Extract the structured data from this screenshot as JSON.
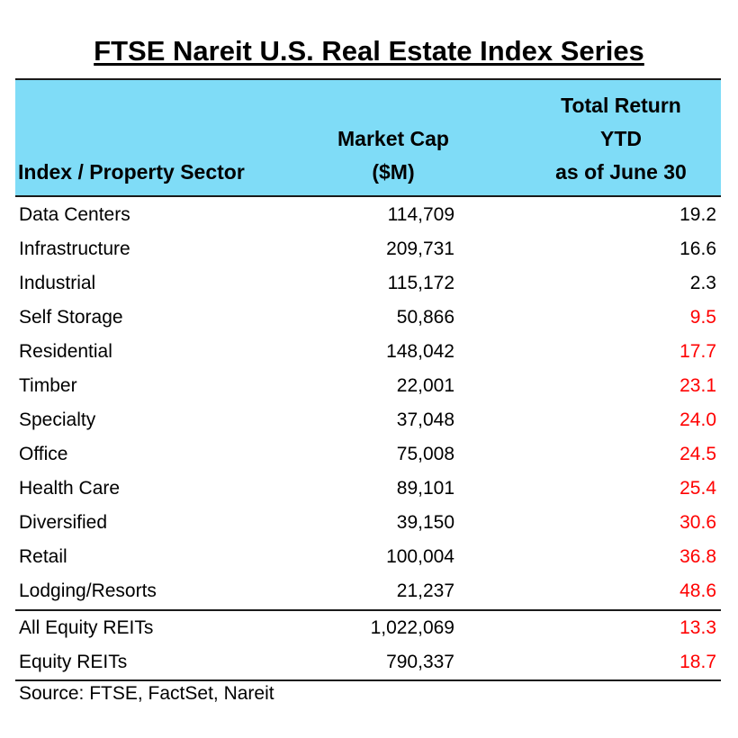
{
  "chart_data": {
    "type": "table",
    "title": "FTSE Nareit U.S. Real Estate Index Series",
    "columns": [
      "Index / Property Sector",
      "Market Cap ($M)",
      "Total Return YTD as of June 30"
    ],
    "header": {
      "sector": "Index / Property Sector",
      "cap_line1": "Market Cap",
      "cap_line2": "($M)",
      "ret_line1": "Total Return",
      "ret_line2": "YTD",
      "ret_line3": "as of June 30"
    },
    "rows": [
      {
        "name": "Data Centers",
        "cap": "114,709",
        "ret": "19.2",
        "ret_color": "black"
      },
      {
        "name": "Infrastructure",
        "cap": "209,731",
        "ret": "16.6",
        "ret_color": "black"
      },
      {
        "name": "Industrial",
        "cap": "115,172",
        "ret": "2.3",
        "ret_color": "black"
      },
      {
        "name": "Self Storage",
        "cap": "50,866",
        "ret": "9.5",
        "ret_color": "red"
      },
      {
        "name": "Residential",
        "cap": "148,042",
        "ret": "17.7",
        "ret_color": "red"
      },
      {
        "name": "Timber",
        "cap": "22,001",
        "ret": "23.1",
        "ret_color": "red"
      },
      {
        "name": "Specialty",
        "cap": "37,048",
        "ret": "24.0",
        "ret_color": "red"
      },
      {
        "name": "Office",
        "cap": "75,008",
        "ret": "24.5",
        "ret_color": "red"
      },
      {
        "name": "Health Care",
        "cap": "89,101",
        "ret": "25.4",
        "ret_color": "red"
      },
      {
        "name": "Diversified",
        "cap": "39,150",
        "ret": "30.6",
        "ret_color": "red"
      },
      {
        "name": "Retail",
        "cap": "100,004",
        "ret": "36.8",
        "ret_color": "red"
      },
      {
        "name": "Lodging/Resorts",
        "cap": "21,237",
        "ret": "48.6",
        "ret_color": "red"
      }
    ],
    "totals": [
      {
        "name": "All Equity REITs",
        "cap": "1,022,069",
        "ret": "13.3",
        "ret_color": "red"
      },
      {
        "name": "Equity REITs",
        "cap": "790,337",
        "ret": "18.7",
        "ret_color": "red"
      }
    ],
    "source": "Source: FTSE, FactSet, Nareit"
  },
  "colors": {
    "header_bg": "#7fdcf7",
    "negative_or_highlight": "#ff0000",
    "text": "#000000"
  }
}
